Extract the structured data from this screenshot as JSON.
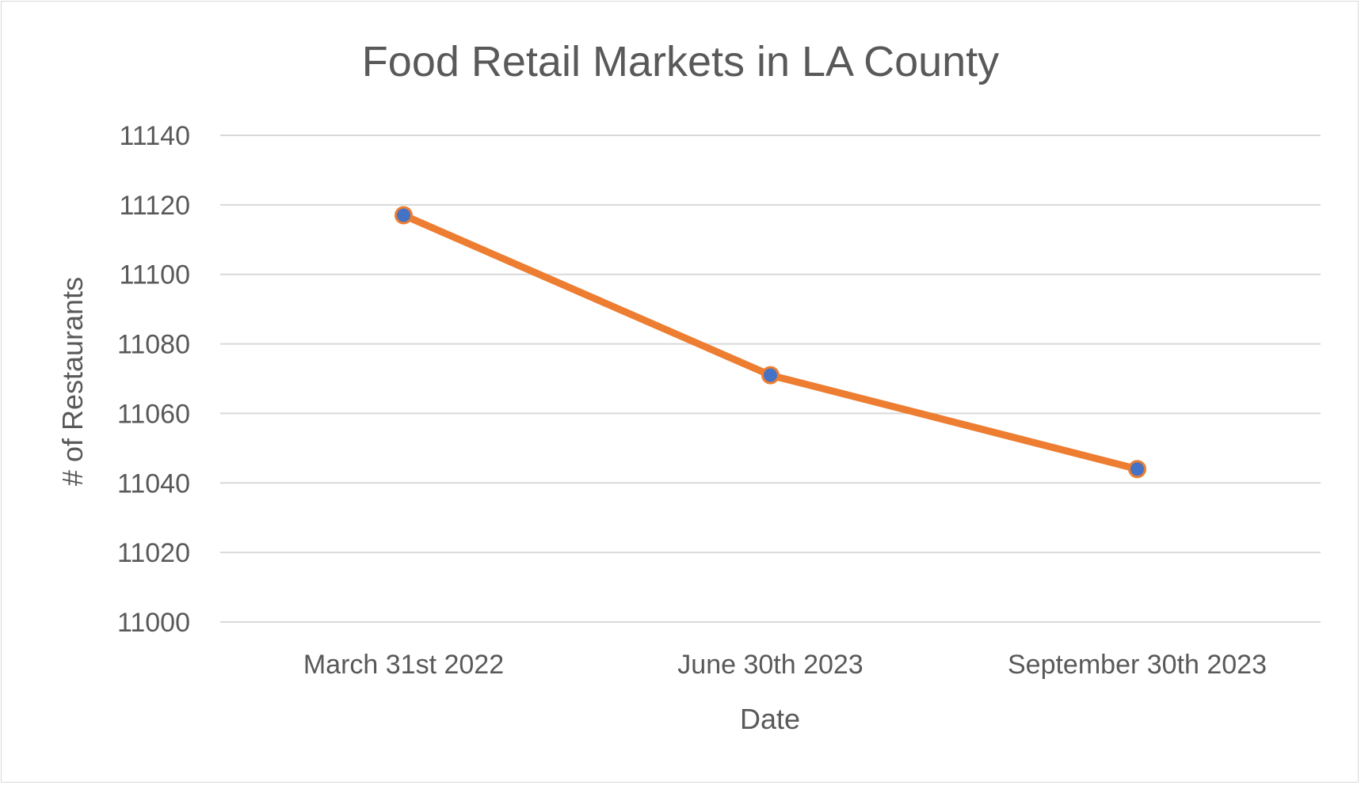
{
  "chart_data": {
    "type": "line",
    "title": "Food Retail Markets in LA County",
    "xlabel": "Date",
    "ylabel": "# of Restaurants",
    "categories": [
      "March 31st 2022",
      "June 30th 2023",
      "September 30th 2023"
    ],
    "series": [
      {
        "values": [
          11117,
          11071,
          11044
        ]
      }
    ],
    "ylim": [
      11000,
      11140
    ],
    "yticks": [
      11000,
      11020,
      11040,
      11060,
      11080,
      11100,
      11120,
      11140
    ],
    "grid": true,
    "legend": "none",
    "colors": {
      "line": "#ED7D31",
      "marker_fill": "#4472C4",
      "marker_stroke": "#ED7D31"
    }
  }
}
